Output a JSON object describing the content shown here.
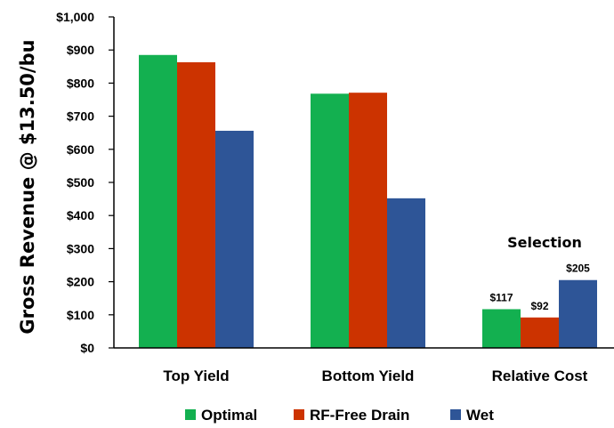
{
  "chart_data": {
    "type": "bar",
    "categories": [
      "Top Yield",
      "Bottom Yield",
      "Relative Cost"
    ],
    "series": [
      {
        "name": "Optimal",
        "color": "#13b050",
        "values": [
          885,
          768,
          117
        ]
      },
      {
        "name": "RF-Free Drain",
        "color": "#cc3300",
        "values": [
          863,
          771,
          92
        ]
      },
      {
        "name": "Wet",
        "color": "#2e5597",
        "values": [
          656,
          452,
          205
        ]
      }
    ],
    "ylim": [
      0,
      1000
    ],
    "yticks": [
      0,
      100,
      200,
      300,
      400,
      500,
      600,
      700,
      800,
      900,
      1000
    ],
    "ytick_labels": [
      "$0",
      "$100",
      "$200",
      "$300",
      "$400",
      "$500",
      "$600",
      "$700",
      "$800",
      "$900",
      "$1,000"
    ],
    "ylabel": "Gross Revenue @ $13.50/bu",
    "xlabel": "",
    "data_labels": {
      "category": "Relative Cost",
      "labels": [
        "$117",
        "$92",
        "$205"
      ]
    },
    "annotation": "Selection",
    "legend": {
      "position": "bottom"
    },
    "grid": false
  }
}
